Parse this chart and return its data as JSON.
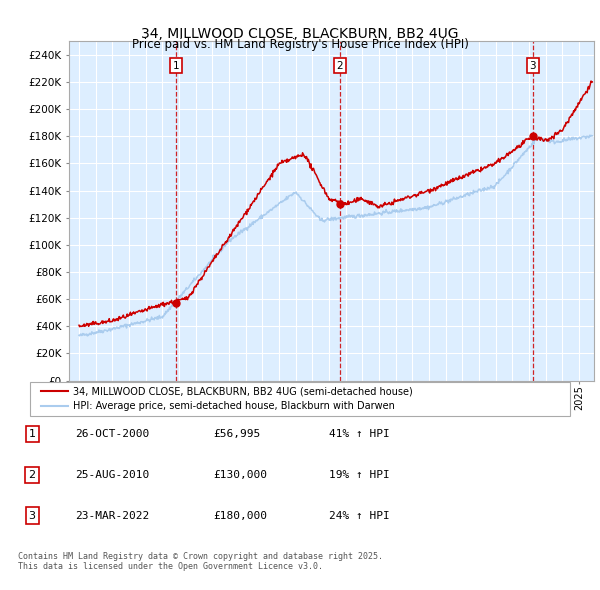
{
  "title": "34, MILLWOOD CLOSE, BLACKBURN, BB2 4UG",
  "subtitle": "Price paid vs. HM Land Registry's House Price Index (HPI)",
  "legend_line1": "34, MILLWOOD CLOSE, BLACKBURN, BB2 4UG (semi-detached house)",
  "legend_line2": "HPI: Average price, semi-detached house, Blackburn with Darwen",
  "footer": "Contains HM Land Registry data © Crown copyright and database right 2025.\nThis data is licensed under the Open Government Licence v3.0.",
  "sale_color": "#cc0000",
  "hpi_color": "#aaccee",
  "vline_color": "#cc0000",
  "plot_bg": "#ddeeff",
  "ylim": [
    0,
    250000
  ],
  "yticks": [
    0,
    20000,
    40000,
    60000,
    80000,
    100000,
    120000,
    140000,
    160000,
    180000,
    200000,
    220000,
    240000
  ],
  "sales": [
    {
      "date": 2000.82,
      "price": 56995,
      "label": "1"
    },
    {
      "date": 2010.65,
      "price": 130000,
      "label": "2"
    },
    {
      "date": 2022.23,
      "price": 180000,
      "label": "3"
    }
  ],
  "table_rows": [
    {
      "num": "1",
      "date": "26-OCT-2000",
      "price": "£56,995",
      "change": "41% ↑ HPI"
    },
    {
      "num": "2",
      "date": "25-AUG-2010",
      "price": "£130,000",
      "change": "19% ↑ HPI"
    },
    {
      "num": "3",
      "date": "23-MAR-2022",
      "price": "£180,000",
      "change": "24% ↑ HPI"
    }
  ]
}
